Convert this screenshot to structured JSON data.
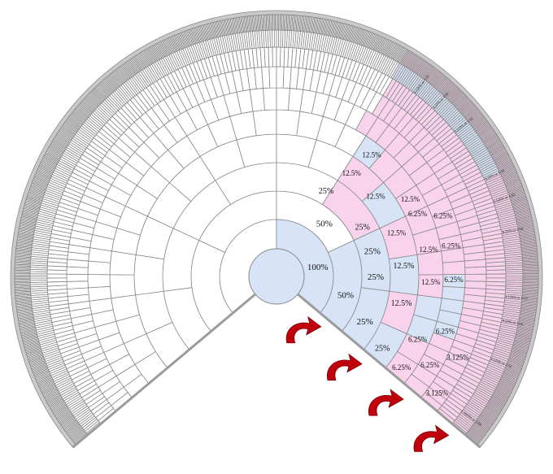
{
  "diagram": {
    "rings": [
      "100%",
      "50%",
      "25%",
      "12.5%",
      "6.25%",
      "3.125%",
      "1.5625%"
    ],
    "colors": {
      "pink": "#f9d3ec",
      "blue": "#d7e3f6",
      "white": "#ffffff",
      "line": "#8a8a8a",
      "outer_border": "#9b9b9b",
      "arrow": "#c0000b"
    },
    "generations": 9,
    "labels": [
      {
        "text": "100%"
      },
      {
        "text": "50%"
      },
      {
        "text": "50%"
      },
      {
        "text": "25%"
      },
      {
        "text": "25%"
      },
      {
        "text": "25%"
      },
      {
        "text": "25%"
      },
      {
        "text": "25%"
      },
      {
        "text": "25%"
      },
      {
        "text": "12.5%"
      },
      {
        "text": "12.5%"
      },
      {
        "text": "12.5%"
      },
      {
        "text": "12.5%"
      },
      {
        "text": "12.5%"
      },
      {
        "text": "12.5%"
      },
      {
        "text": "12.5%"
      },
      {
        "text": "12.5%"
      },
      {
        "text": "12.5%"
      },
      {
        "text": "6.25%"
      },
      {
        "text": "6.25%"
      },
      {
        "text": "6.25%"
      },
      {
        "text": "6.25%"
      },
      {
        "text": "6.25%"
      },
      {
        "text": "6.25%"
      },
      {
        "text": "6.25%"
      },
      {
        "text": "6.25%"
      },
      {
        "text": "3.125%"
      },
      {
        "text": "3.125%"
      }
    ],
    "outer_labels": [
      "3.125% or 1/32",
      "6.25% or 1/16",
      "3.125% or 1/32",
      "6.25% or 1/16",
      "3.125% or 1/32",
      "6.25% or 1/16",
      "3.125% or 1/32",
      "6.25% or 1/16",
      "3.125% or 1/32",
      "1.5625% or 1/64"
    ]
  }
}
